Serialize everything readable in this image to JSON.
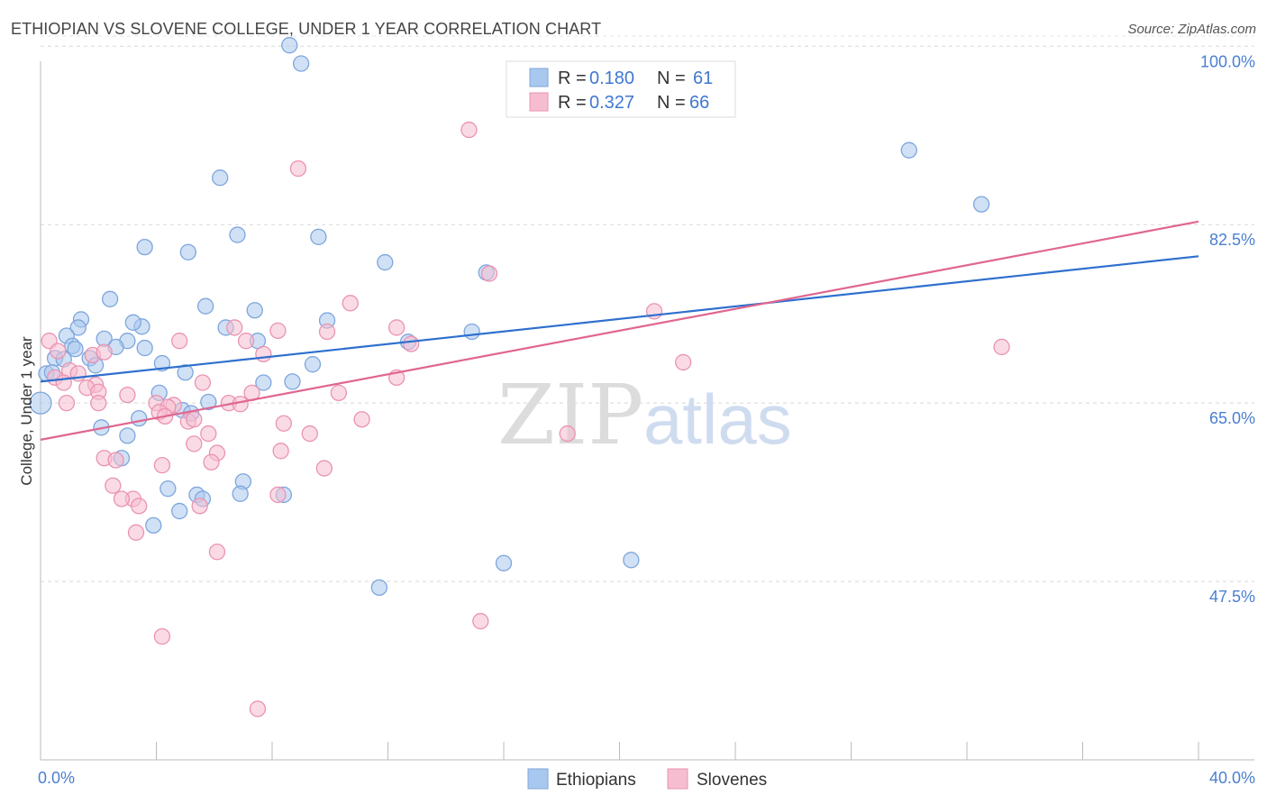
{
  "title": "ETHIOPIAN VS SLOVENE COLLEGE, UNDER 1 YEAR CORRELATION CHART",
  "source": "Source: ZipAtlas.com",
  "watermark": {
    "zip": "ZIP",
    "atlas": "atlas"
  },
  "legend": {
    "r_label": "R =",
    "n_label": "N =",
    "series": [
      {
        "r": "0.180",
        "n": "61",
        "color": "#a9c8ef",
        "stroke": "#7ea6dc"
      },
      {
        "r": "0.327",
        "n": "66",
        "color": "#f6bdd0",
        "stroke": "#ea93b3"
      }
    ]
  },
  "chart_data": {
    "type": "scatter",
    "title": "ETHIOPIAN VS SLOVENE COLLEGE, UNDER 1 YEAR CORRELATION CHART",
    "ylabel": "College, Under 1 year",
    "xlabel": "",
    "xlim": [
      0,
      40
    ],
    "ylim": [
      30,
      101
    ],
    "x_tick_labels": [
      "0.0%",
      "40.0%"
    ],
    "y_ticks": [
      47.5,
      65.0,
      82.5,
      100.0
    ],
    "y_tick_labels": [
      "47.5%",
      "65.0%",
      "82.5%",
      "100.0%"
    ],
    "grid": true,
    "series": [
      {
        "name": "Ethiopians",
        "color": "#a9c8ef",
        "stroke": "#7ea6dc",
        "line_color": "#2e6fce",
        "trend": {
          "x": [
            0,
            40
          ],
          "y": [
            67.1,
            79.4
          ]
        },
        "points": [
          [
            8.6,
            100.1
          ],
          [
            9.0,
            98.3
          ],
          [
            6.2,
            87.1
          ],
          [
            3.6,
            80.3
          ],
          [
            5.1,
            79.8
          ],
          [
            6.8,
            81.5
          ],
          [
            9.6,
            81.3
          ],
          [
            11.9,
            78.8
          ],
          [
            15.4,
            77.8
          ],
          [
            30.0,
            89.8
          ],
          [
            32.5,
            84.5
          ],
          [
            2.4,
            75.2
          ],
          [
            5.7,
            74.5
          ],
          [
            7.4,
            74.1
          ],
          [
            9.9,
            73.1
          ],
          [
            3.5,
            72.5
          ],
          [
            3.2,
            72.9
          ],
          [
            6.4,
            72.4
          ],
          [
            1.4,
            73.2
          ],
          [
            1.3,
            72.4
          ],
          [
            0.9,
            71.6
          ],
          [
            2.2,
            71.3
          ],
          [
            3.0,
            71.1
          ],
          [
            7.5,
            71.1
          ],
          [
            12.7,
            71.0
          ],
          [
            14.9,
            72.0
          ],
          [
            1.1,
            70.6
          ],
          [
            2.6,
            70.5
          ],
          [
            3.6,
            70.4
          ],
          [
            1.7,
            69.4
          ],
          [
            0.5,
            69.4
          ],
          [
            0.8,
            69.3
          ],
          [
            4.2,
            68.9
          ],
          [
            1.9,
            68.7
          ],
          [
            9.4,
            68.8
          ],
          [
            0.2,
            67.9
          ],
          [
            5.0,
            68.0
          ],
          [
            7.7,
            67.0
          ],
          [
            8.7,
            67.1
          ],
          [
            4.1,
            66.0
          ],
          [
            5.8,
            65.1
          ],
          [
            4.9,
            64.3
          ],
          [
            5.2,
            64.0
          ],
          [
            3.4,
            63.5
          ],
          [
            2.1,
            62.6
          ],
          [
            3.0,
            61.8
          ],
          [
            2.8,
            59.6
          ],
          [
            7.0,
            57.3
          ],
          [
            4.4,
            56.6
          ],
          [
            5.4,
            56.0
          ],
          [
            5.6,
            55.6
          ],
          [
            6.9,
            56.1
          ],
          [
            8.4,
            56.0
          ],
          [
            4.8,
            54.4
          ],
          [
            3.9,
            53.0
          ],
          [
            16.0,
            49.3
          ],
          [
            20.4,
            49.6
          ],
          [
            11.7,
            46.9
          ],
          [
            0.0,
            65.0
          ],
          [
            1.2,
            70.3
          ],
          [
            0.4,
            68.0
          ]
        ]
      },
      {
        "name": "Slovenes",
        "color": "#f6bdd0",
        "stroke": "#ea93b3",
        "line_color": "#e0668f",
        "trend": {
          "x": [
            0,
            40
          ],
          "y": [
            61.4,
            82.8
          ]
        },
        "points": [
          [
            14.8,
            91.8
          ],
          [
            8.9,
            88.0
          ],
          [
            15.5,
            77.7
          ],
          [
            10.7,
            74.8
          ],
          [
            21.2,
            74.0
          ],
          [
            8.2,
            72.1
          ],
          [
            6.7,
            72.4
          ],
          [
            12.3,
            72.4
          ],
          [
            9.9,
            72.0
          ],
          [
            7.1,
            71.1
          ],
          [
            4.8,
            71.1
          ],
          [
            12.8,
            70.8
          ],
          [
            33.2,
            70.5
          ],
          [
            0.3,
            71.1
          ],
          [
            0.6,
            70.1
          ],
          [
            1.8,
            69.7
          ],
          [
            2.2,
            70.0
          ],
          [
            7.7,
            69.8
          ],
          [
            22.2,
            69.0
          ],
          [
            1.0,
            68.2
          ],
          [
            1.3,
            67.9
          ],
          [
            0.5,
            67.5
          ],
          [
            0.8,
            67.0
          ],
          [
            1.9,
            66.8
          ],
          [
            1.6,
            66.5
          ],
          [
            2.0,
            66.1
          ],
          [
            5.6,
            67.0
          ],
          [
            12.3,
            67.5
          ],
          [
            10.3,
            66.0
          ],
          [
            7.3,
            66.0
          ],
          [
            3.0,
            65.8
          ],
          [
            4.0,
            65.0
          ],
          [
            4.6,
            64.8
          ],
          [
            4.4,
            64.6
          ],
          [
            2.0,
            65.0
          ],
          [
            0.9,
            65.0
          ],
          [
            6.5,
            65.0
          ],
          [
            4.1,
            64.1
          ],
          [
            4.3,
            63.7
          ],
          [
            5.1,
            63.2
          ],
          [
            5.3,
            63.4
          ],
          [
            8.4,
            63.0
          ],
          [
            11.1,
            63.4
          ],
          [
            5.8,
            62.0
          ],
          [
            9.3,
            62.0
          ],
          [
            18.2,
            62.0
          ],
          [
            5.3,
            61.0
          ],
          [
            6.1,
            60.1
          ],
          [
            8.3,
            60.3
          ],
          [
            2.2,
            59.6
          ],
          [
            2.6,
            59.4
          ],
          [
            5.9,
            59.2
          ],
          [
            4.2,
            58.9
          ],
          [
            2.5,
            56.9
          ],
          [
            8.2,
            56.0
          ],
          [
            3.2,
            55.6
          ],
          [
            2.8,
            55.6
          ],
          [
            3.4,
            54.9
          ],
          [
            5.5,
            54.9
          ],
          [
            3.3,
            52.3
          ],
          [
            6.1,
            50.4
          ],
          [
            15.2,
            43.6
          ],
          [
            4.2,
            42.1
          ],
          [
            7.5,
            35.0
          ],
          [
            6.9,
            64.9
          ],
          [
            9.8,
            58.6
          ]
        ]
      }
    ],
    "bottom_legend": [
      "Ethiopians",
      "Slovenes"
    ]
  }
}
